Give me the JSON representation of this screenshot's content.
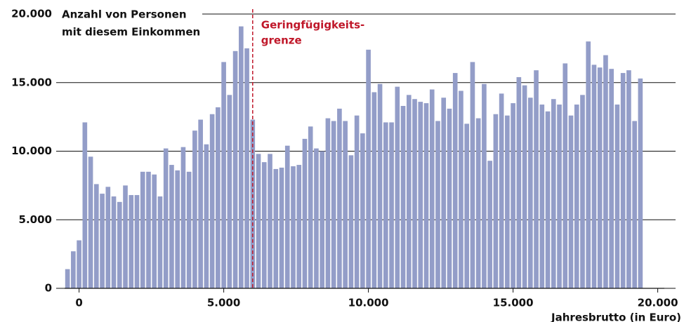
{
  "chart_data": {
    "type": "histogram",
    "y_label": [
      "Anzahl von Personen",
      "mit diesem Einkommen"
    ],
    "x_label": "Jahresbrutto (in Euro)",
    "annotation": {
      "x": 6000,
      "label": [
        "Geringfügigkeits-",
        "grenze"
      ],
      "color": "#c0182a"
    },
    "color": "#939dc8",
    "bins": [
      -500,
      -300,
      -100,
      100,
      300,
      500,
      700,
      900,
      1100,
      1300,
      1500,
      1700,
      1900,
      2100,
      2300,
      2500,
      2700,
      2900,
      3100,
      3300,
      3500,
      3700,
      3900,
      4100,
      4300,
      4500,
      4700,
      4900,
      5100,
      5300,
      5500,
      5700,
      5900,
      6100,
      6300,
      6500,
      6700,
      6900,
      7100,
      7300,
      7500,
      7700,
      7900,
      8100,
      8300,
      8500,
      8700,
      8900,
      9100,
      9300,
      9500,
      9700,
      9900,
      10100,
      10300,
      10500,
      10700,
      10900,
      11100,
      11300,
      11500,
      11700,
      11900,
      12100,
      12300,
      12500,
      12700,
      12900,
      13100,
      13300,
      13500,
      13700,
      13900,
      14100,
      14300,
      14500,
      14700,
      14900,
      15100,
      15300,
      15500,
      15700,
      15900,
      16100,
      16300,
      16500,
      16700,
      16900,
      17100,
      17300,
      17500,
      17700,
      17900,
      18100,
      18300,
      18500,
      18700,
      18900,
      19100,
      19300,
      19500
    ],
    "counts": [
      1400,
      2700,
      3500,
      12100,
      9600,
      7600,
      6900,
      7400,
      6700,
      6300,
      7500,
      6800,
      6800,
      8500,
      8500,
      8300,
      6700,
      10200,
      9000,
      8600,
      10300,
      8500,
      11500,
      12300,
      10500,
      12700,
      13200,
      16500,
      14100,
      17300,
      19100,
      17500,
      12300,
      9800,
      9200,
      9800,
      8700,
      8800,
      10400,
      8900,
      9000,
      10900,
      11800,
      10200,
      10000,
      12400,
      12200,
      13100,
      12200,
      9700,
      12600,
      11300,
      17400,
      14300,
      14900,
      12100,
      12100,
      14700,
      13300,
      14100,
      13800,
      13600,
      13500,
      14500,
      12200,
      13900,
      13100,
      15700,
      14400,
      12000,
      16500,
      12400,
      14900,
      9300,
      12700,
      14200,
      12600,
      13500,
      15400,
      14800,
      13900,
      15900,
      13400,
      12900,
      13800,
      13400,
      16400,
      12600,
      13400,
      14100,
      18000,
      16300,
      16100,
      17000,
      16000,
      13400,
      15700,
      15900,
      12200,
      15300
    ],
    "xlim": [
      -500,
      20200
    ],
    "xticks": [
      0,
      {
        "value": 5000,
        "label": "5.000"
      },
      {
        "value": 10000,
        "label": "10.000"
      },
      {
        "value": 15000,
        "label": "15.000"
      },
      {
        "value": 20000,
        "label": "20.000"
      }
    ],
    "ylim": [
      0,
      20000
    ],
    "yticks": [
      0,
      {
        "value": 5000,
        "label": "5.000"
      },
      {
        "value": 10000,
        "label": "10.000"
      },
      {
        "value": 15000,
        "label": "15.000"
      },
      {
        "value": 20000,
        "label": "20.000"
      }
    ],
    "grid": true
  }
}
